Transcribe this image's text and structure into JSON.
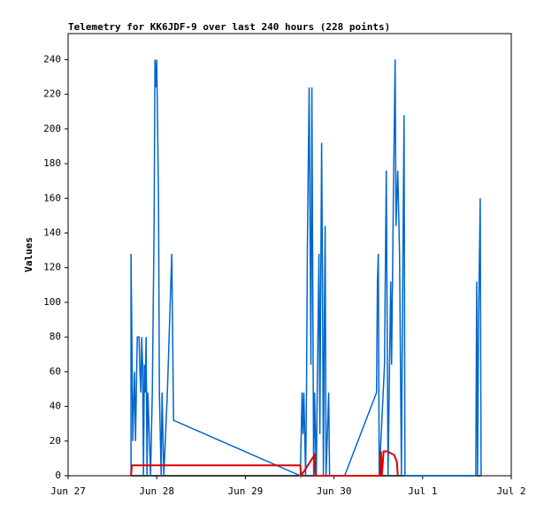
{
  "chart_data": {
    "type": "line",
    "title": "Telemetry for KK6JDF-9 over last 240 hours (228 points)",
    "y_label": "Values",
    "xlim": [
      0,
      5
    ],
    "ylim": [
      0,
      255
    ],
    "xticks": [
      {
        "value": 0,
        "label": "Jun 27"
      },
      {
        "value": 1,
        "label": "Jun 28"
      },
      {
        "value": 2,
        "label": "Jun 29"
      },
      {
        "value": 3,
        "label": "Jun 30"
      },
      {
        "value": 4,
        "label": "Jul 1"
      },
      {
        "value": 5,
        "label": "Jul 2"
      }
    ],
    "yticks": [
      0,
      20,
      40,
      60,
      80,
      100,
      120,
      140,
      160,
      180,
      200,
      220,
      240
    ],
    "grid": false,
    "series": [
      {
        "color": "#000000",
        "x": [
          0.71,
          4.66
        ],
        "values": [
          0,
          0
        ]
      },
      {
        "color": "#0066cc",
        "x": [
          0.71,
          0.71,
          0.72,
          0.73,
          0.75,
          0.76,
          0.78,
          0.8,
          0.81,
          0.82,
          0.83,
          0.84,
          0.85,
          0.86,
          0.87,
          0.88,
          0.89,
          0.9,
          0.93,
          0.95,
          0.97,
          0.98,
          0.99,
          1.0,
          1.01,
          1.02,
          1.03,
          1.05,
          1.06,
          1.08,
          1.12,
          1.17,
          1.19,
          2.62,
          2.64,
          2.65,
          2.66,
          2.68,
          2.69,
          2.7,
          2.72,
          2.74,
          2.75,
          2.77,
          2.78,
          2.8,
          2.81,
          2.83,
          2.84,
          2.86,
          2.87,
          2.88,
          2.89,
          2.9,
          2.91,
          2.93,
          2.94,
          2.95,
          2.97,
          3.12,
          3.48,
          3.49,
          3.5,
          3.51,
          3.57,
          3.59,
          3.6,
          3.61,
          3.64,
          3.65,
          3.67,
          3.69,
          3.7,
          3.72,
          3.74,
          3.76,
          3.77,
          3.79,
          3.8,
          4.6,
          4.61,
          4.62,
          4.63,
          4.65,
          4.66
        ],
        "values": [
          0,
          128,
          80,
          20,
          60,
          20,
          80,
          80,
          60,
          48,
          80,
          64,
          0,
          64,
          48,
          80,
          0,
          48,
          0,
          48,
          144,
          240,
          224,
          240,
          200,
          160,
          48,
          0,
          48,
          0,
          48,
          128,
          32,
          0,
          48,
          24,
          48,
          0,
          48,
          132,
          224,
          64,
          224,
          0,
          48,
          0,
          48,
          128,
          24,
          192,
          112,
          0,
          80,
          144,
          0,
          32,
          48,
          0,
          0,
          0,
          48,
          112,
          128,
          0,
          64,
          176,
          88,
          0,
          112,
          64,
          160,
          240,
          144,
          176,
          128,
          0,
          80,
          208,
          0,
          0,
          112,
          0,
          84,
          160,
          0
        ]
      },
      {
        "color": "#dd0000",
        "x": [
          0.71,
          0.72,
          2.62,
          2.63,
          2.78,
          2.79,
          3.52,
          3.53,
          3.54,
          3.56,
          3.6,
          3.68,
          3.71,
          3.72
        ],
        "values": [
          0,
          6,
          6,
          0,
          12,
          0,
          0,
          14,
          0,
          14,
          14,
          12,
          8,
          0
        ]
      }
    ]
  }
}
